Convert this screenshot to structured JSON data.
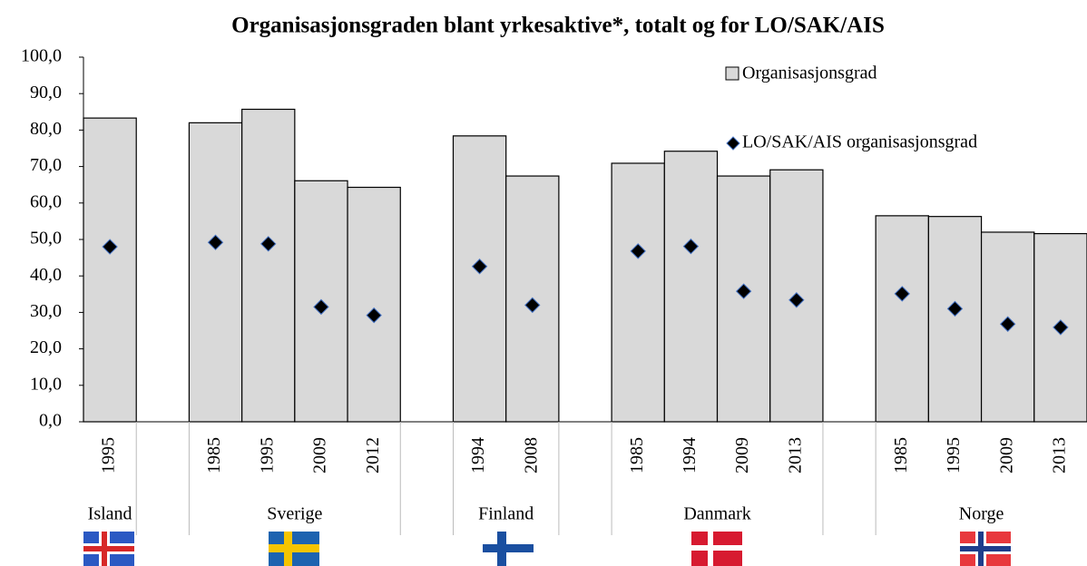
{
  "chart_data": {
    "type": "bar",
    "title": "Organisasjonsgraden blant yrkesaktive*, totalt og for LO/SAK/AIS",
    "categories": [
      "1995",
      null,
      "1985",
      "1995",
      "2009",
      "2012",
      null,
      "1994",
      "2008",
      null,
      "1985",
      "1994",
      "2009",
      "2013",
      null,
      "1985",
      "1995",
      "2009",
      "2013"
    ],
    "groups": [
      "Island",
      "Sverige",
      "Finland",
      "Danmark",
      "Norge"
    ],
    "series": [
      {
        "name": "Organisasjonsgrad",
        "color": "#d9d9d9",
        "values": [
          83.3,
          null,
          82.0,
          85.7,
          66.1,
          64.3,
          null,
          78.4,
          67.4,
          null,
          70.9,
          74.2,
          67.4,
          69.1,
          null,
          56.5,
          56.3,
          52.0,
          51.6
        ]
      },
      {
        "name": "LO/SAK/AIS organisasjonsgrad",
        "color": "#000000",
        "marker": "diamond",
        "values": [
          48.0,
          null,
          49.2,
          48.8,
          31.5,
          29.2,
          null,
          42.6,
          32.0,
          null,
          46.8,
          48.1,
          35.8,
          33.4,
          null,
          35.1,
          31.0,
          26.8,
          25.9
        ]
      }
    ],
    "ylim": [
      0,
      100
    ],
    "yticks": [
      {
        "value": 0,
        "label": "0,0"
      },
      {
        "value": 10,
        "label": "10,0"
      },
      {
        "value": 20,
        "label": "20,0"
      },
      {
        "value": 30,
        "label": "30,0"
      },
      {
        "value": 40,
        "label": "40,0"
      },
      {
        "value": 50,
        "label": "50,0"
      },
      {
        "value": 60,
        "label": "60,0"
      },
      {
        "value": 70,
        "label": "70,0"
      },
      {
        "value": 80,
        "label": "80,0"
      },
      {
        "value": 90,
        "label": "90,0"
      },
      {
        "value": 100,
        "label": "100,0"
      }
    ],
    "legend": "top-right"
  }
}
